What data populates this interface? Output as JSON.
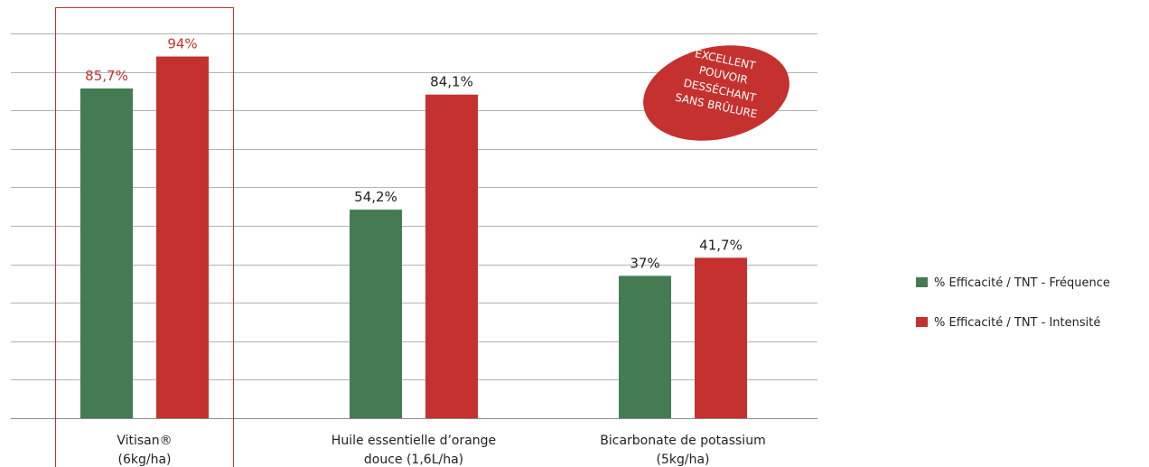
{
  "chart_data": {
    "type": "bar",
    "categories": [
      [
        "Vitisan®",
        "(6kg/ha)"
      ],
      [
        "Huile essentielle d’orange",
        "douce (1,6L/ha)"
      ],
      [
        "Bicarbonate de potassium",
        "(5kg/ha)"
      ]
    ],
    "series": [
      {
        "name": "% Efficacité / TNT - Fréquence",
        "color": "#447b53",
        "values": [
          85.7,
          54.2,
          37
        ],
        "labels": [
          "85,7%",
          "54,2%",
          "37%"
        ]
      },
      {
        "name": "% Efficacité / TNT - Intensité",
        "color": "#c4312e",
        "values": [
          94,
          84.1,
          41.7
        ],
        "labels": [
          "94%",
          "84,1%",
          "41,7%"
        ]
      }
    ],
    "ylim": [
      0,
      100
    ],
    "grid": true,
    "legend": "right",
    "highlighted_category": 0,
    "highlight_color": "#c4312e",
    "annotation": {
      "lines": [
        "EXCELLENT",
        "POUVOIR",
        "DESSÉCHANT",
        "SANS BRÛLURE"
      ],
      "color": "#c4312e"
    }
  }
}
